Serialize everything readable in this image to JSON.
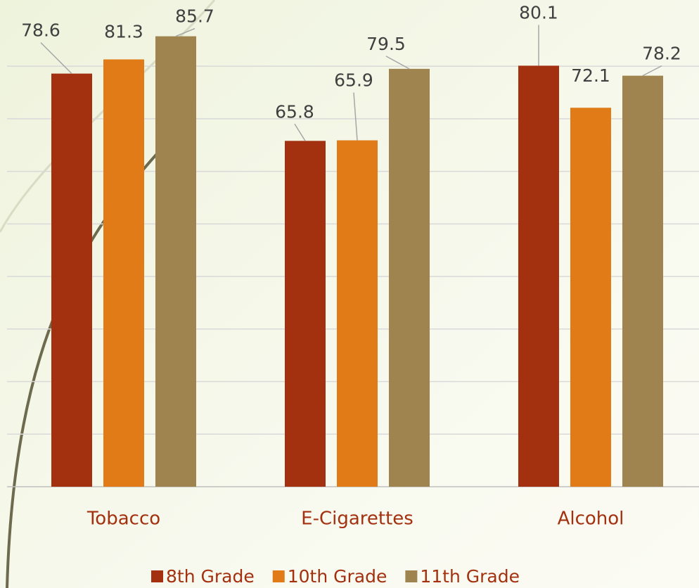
{
  "chart_data": {
    "type": "bar",
    "categories": [
      "Tobacco",
      "E-Cigarettes",
      "Alcohol"
    ],
    "series": [
      {
        "name": "8th Grade",
        "color": "#a3300f",
        "values": [
          78.6,
          65.8,
          80.1
        ]
      },
      {
        "name": "10th Grade",
        "color": "#e07b18",
        "values": [
          81.3,
          65.9,
          72.1
        ]
      },
      {
        "name": "11th Grade",
        "color": "#a08450",
        "values": [
          85.7,
          79.5,
          78.2
        ]
      }
    ],
    "ylim": [
      0,
      92.6
    ],
    "yticks": [
      0,
      10,
      20,
      30,
      40,
      50,
      60,
      70,
      80
    ],
    "grid": true,
    "legend": "bottom"
  }
}
